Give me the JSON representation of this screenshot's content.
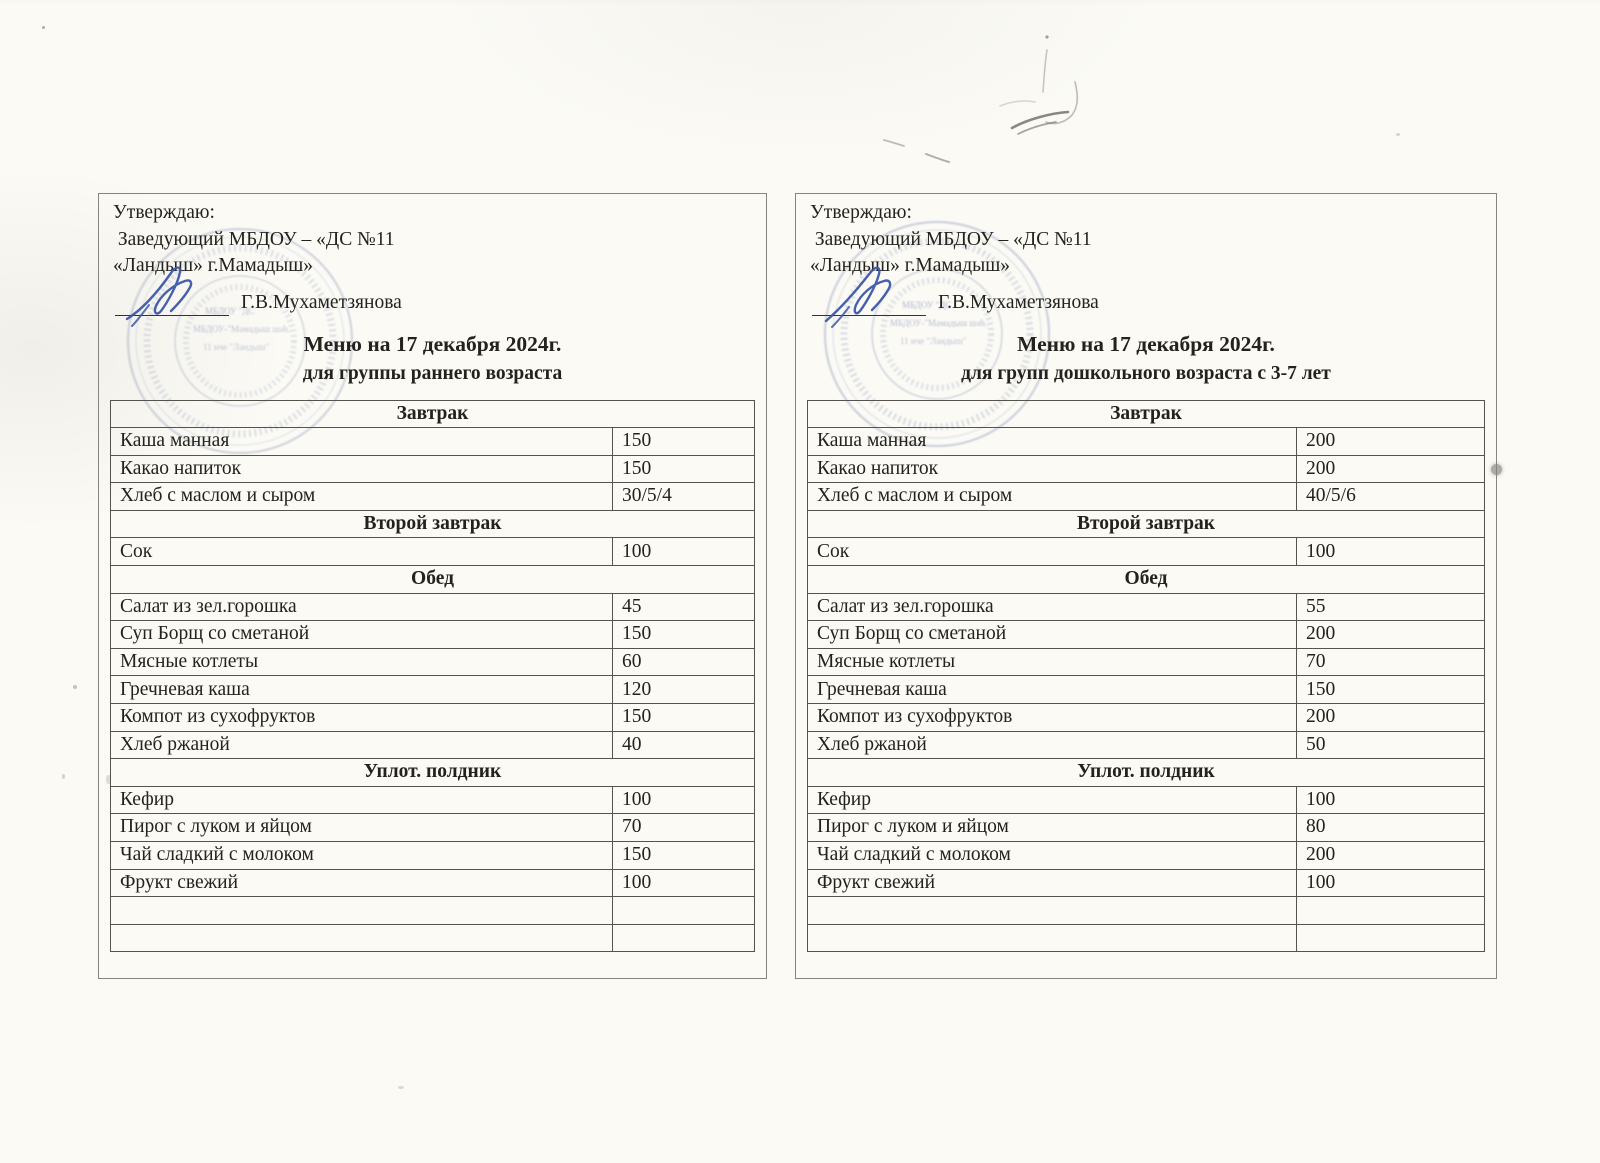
{
  "panels": {
    "left": {
      "approval": {
        "line1": "Утверждаю:",
        "line2": " Заведующий МБДОУ – «ДС №11",
        "line3": "«Ландыш» г.Мамадыш»",
        "signer_name": "Г.В.Мухаметзянова"
      },
      "title": "Меню на 17 декабря 2024г.",
      "subtitle": "для группы раннего возраста",
      "table": {
        "rows": [
          {
            "type": "section",
            "label": "Завтрак"
          },
          {
            "type": "item",
            "label": "Каша манная",
            "value": "150"
          },
          {
            "type": "item",
            "label": "Какао напиток",
            "value": "150"
          },
          {
            "type": "item",
            "label": "Хлеб с маслом и сыром",
            "value": "30/5/4"
          },
          {
            "type": "section",
            "label": "Второй завтрак"
          },
          {
            "type": "item",
            "label": "Сок",
            "value": "100"
          },
          {
            "type": "section",
            "label": "Обед"
          },
          {
            "type": "item",
            "label": "Салат из зел.горошка",
            "value": "45"
          },
          {
            "type": "item",
            "label": "Суп Борщ со сметаной",
            "value": "150"
          },
          {
            "type": "item",
            "label": "Мясные котлеты",
            "value": "60"
          },
          {
            "type": "item",
            "label": "Гречневая каша",
            "value": "120"
          },
          {
            "type": "item",
            "label": "Компот из сухофруктов",
            "value": "150"
          },
          {
            "type": "item",
            "label": "Хлеб ржаной",
            "value": "40"
          },
          {
            "type": "section",
            "label": "Уплот. полдник"
          },
          {
            "type": "item",
            "label": "Кефир",
            "value": "100"
          },
          {
            "type": "item",
            "label": "Пирог с луком и яйцом",
            "value": "70"
          },
          {
            "type": "item",
            "label": "Чай сладкий с молоком",
            "value": "150"
          },
          {
            "type": "item",
            "label": "Фрукт свежий",
            "value": "100"
          },
          {
            "type": "empty",
            "label": "",
            "value": ""
          },
          {
            "type": "empty",
            "label": "",
            "value": ""
          }
        ]
      }
    },
    "right": {
      "approval": {
        "line1": "Утверждаю:",
        "line2": " Заведующий МБДОУ – «ДС №11",
        "line3": "«Ландыш» г.Мамадыш»",
        "signer_name": "Г.В.Мухаметзянова"
      },
      "title": "Меню на 17 декабря 2024г.",
      "subtitle": "для групп дошкольного возраста с 3-7 лет",
      "table": {
        "rows": [
          {
            "type": "section",
            "label": "Завтрак"
          },
          {
            "type": "item",
            "label": "Каша манная",
            "value": "200"
          },
          {
            "type": "item",
            "label": "Какао напиток",
            "value": "200"
          },
          {
            "type": "item",
            "label": "Хлеб с маслом и сыром",
            "value": "40/5/6"
          },
          {
            "type": "section",
            "label": "Второй завтрак"
          },
          {
            "type": "item",
            "label": "Сок",
            "value": "100"
          },
          {
            "type": "section",
            "label": "Обед"
          },
          {
            "type": "item",
            "label": "Салат из зел.горошка",
            "value": "55"
          },
          {
            "type": "item",
            "label": "Суп Борщ со сметаной",
            "value": "200"
          },
          {
            "type": "item",
            "label": "Мясные котлеты",
            "value": "70"
          },
          {
            "type": "item",
            "label": "Гречневая каша",
            "value": "150"
          },
          {
            "type": "item",
            "label": "Компот из сухофруктов",
            "value": "200"
          },
          {
            "type": "item",
            "label": "Хлеб ржаной",
            "value": "50"
          },
          {
            "type": "section",
            "label": "Уплот. полдник"
          },
          {
            "type": "item",
            "label": "Кефир",
            "value": "100"
          },
          {
            "type": "item",
            "label": "Пирог с луком и яйцом",
            "value": "80"
          },
          {
            "type": "item",
            "label": "Чай сладкий с молоком",
            "value": "200"
          },
          {
            "type": "item",
            "label": "Фрукт свежий",
            "value": "100"
          },
          {
            "type": "empty",
            "label": "",
            "value": ""
          },
          {
            "type": "empty",
            "label": "",
            "value": ""
          }
        ]
      }
    }
  },
  "stamp": {
    "fragments": [
      "МБДОУ \"ДС",
      "МБДОУ-\"Мамадыш шәһ.",
      "11 нче \"Ландыш\""
    ]
  },
  "colors": {
    "paper": "#fbfaf5",
    "ink": "#23221d",
    "table_border": "#55534c",
    "panel_border": "#85847d",
    "stamp_blue": "#6c7ca8",
    "signature_blue": "#3d57a9"
  }
}
